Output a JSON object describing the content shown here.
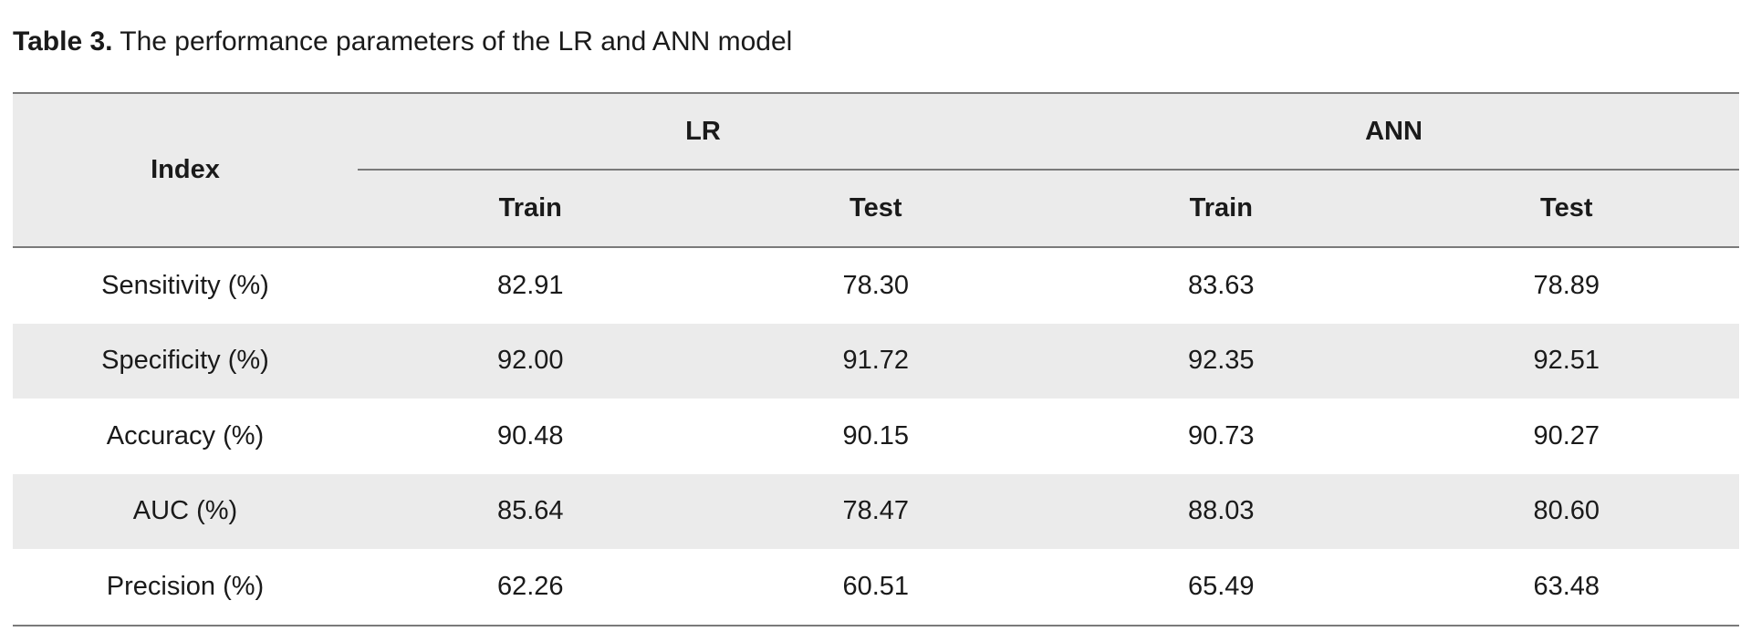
{
  "caption": {
    "label": "Table 3.",
    "text": " The performance parameters of the LR and ANN model"
  },
  "table": {
    "index_header": "Index",
    "groups": [
      "LR",
      "ANN"
    ],
    "subheaders": [
      "Train",
      "Test",
      "Train",
      "Test"
    ],
    "rows": [
      {
        "label": "Sensitivity (%)",
        "values": [
          "82.91",
          "78.30",
          "83.63",
          "78.89"
        ]
      },
      {
        "label": "Specificity (%)",
        "values": [
          "92.00",
          "91.72",
          "92.35",
          "92.51"
        ]
      },
      {
        "label": "Accuracy (%)",
        "values": [
          "90.48",
          "90.15",
          "90.73",
          "90.27"
        ]
      },
      {
        "label": "AUC (%)",
        "values": [
          "85.64",
          "78.47",
          "88.03",
          "80.60"
        ]
      },
      {
        "label": "Precision (%)",
        "values": [
          "62.26",
          "60.51",
          "65.49",
          "63.48"
        ]
      }
    ]
  }
}
